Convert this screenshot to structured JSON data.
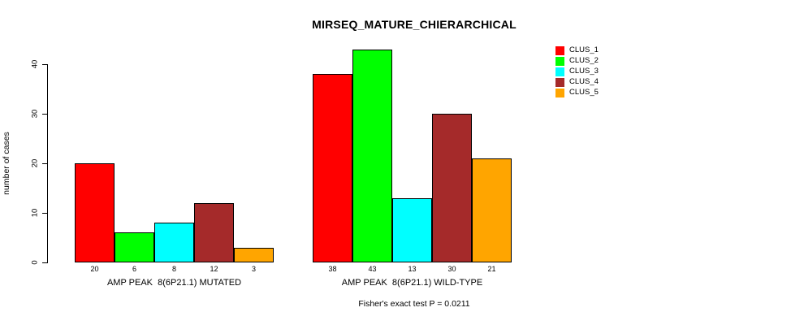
{
  "title": "MIRSEQ_MATURE_CHIERARCHICAL",
  "chart_data": {
    "type": "bar",
    "title": "MIRSEQ_MATURE_CHIERARCHICAL",
    "xlabel": "",
    "ylabel": "number of cases",
    "ylim": [
      0,
      43
    ],
    "yticks": [
      0,
      10,
      20,
      30,
      40
    ],
    "grid": false,
    "legend_position": "top-right",
    "categories": [
      "AMP PEAK  8(6P21.1) MUTATED",
      "AMP PEAK  8(6P21.1) WILD-TYPE"
    ],
    "series": [
      {
        "name": "CLUS_1",
        "color": "#FF0000",
        "values": [
          20,
          38
        ]
      },
      {
        "name": "CLUS_2",
        "color": "#00FF00",
        "values": [
          6,
          43
        ]
      },
      {
        "name": "CLUS_3",
        "color": "#00FFFF",
        "values": [
          8,
          13
        ]
      },
      {
        "name": "CLUS_4",
        "color": "#A52A2A",
        "values": [
          12,
          30
        ]
      },
      {
        "name": "CLUS_5",
        "color": "#FFA500",
        "values": [
          3,
          21
        ]
      }
    ],
    "bar_value_labels": [
      [
        20,
        6,
        8,
        12,
        3
      ],
      [
        38,
        43,
        13,
        30,
        21
      ]
    ],
    "annotation": "Fisher's exact test P = 0.0211"
  }
}
